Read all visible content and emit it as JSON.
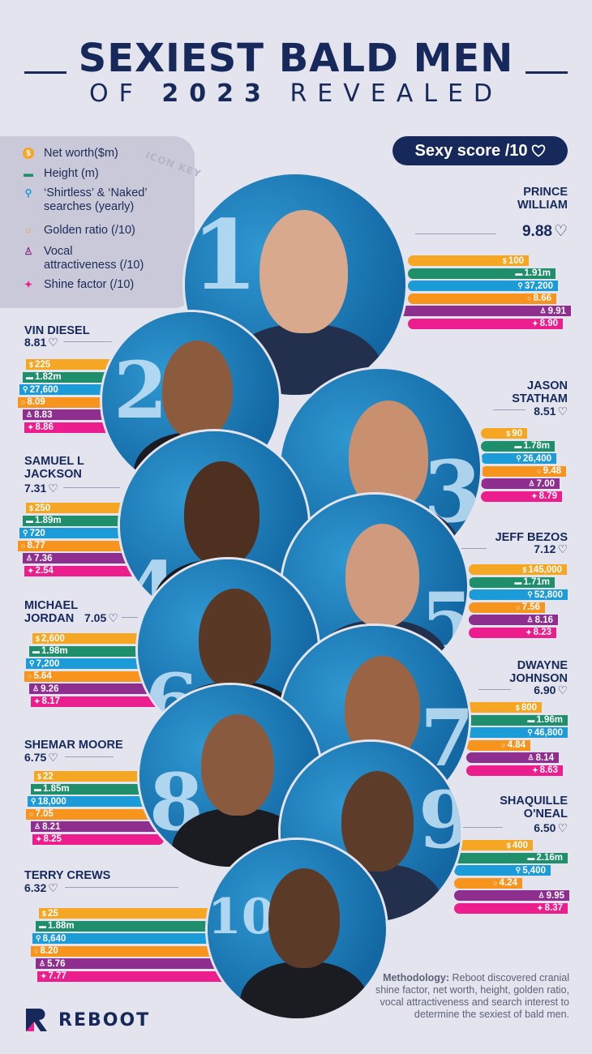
{
  "header": {
    "title_line1": "SEXIEST BALD MEN",
    "title_of": "OF",
    "title_year": "2023",
    "title_revealed": "REVEALED"
  },
  "key": {
    "label": "ICON KEY",
    "items": [
      {
        "icon": "dollar-coin-icon",
        "text": "Net worth($m)",
        "color": "#f5a623"
      },
      {
        "icon": "ruler-icon",
        "text": "Height (m)",
        "color": "#1f8f6b"
      },
      {
        "icon": "search-icon",
        "text": "‘Shirtless’ & ‘Naked’",
        "text2": "searches (yearly)",
        "color": "#1b9bd7"
      },
      {
        "icon": "circle-icon",
        "text": "Golden ratio (/10)",
        "color": "#f7941d"
      },
      {
        "icon": "microphone-icon",
        "text": "Vocal",
        "text2": "attractiveness (/10)",
        "color": "#8e2f8f"
      },
      {
        "icon": "sparkle-icon",
        "text": "Shine factor (/10)",
        "color": "#ec1d8c"
      }
    ]
  },
  "badge": {
    "label": "Sexy score /10",
    "icon": "heart-icon"
  },
  "colors": {
    "networth": "#f5a623",
    "height": "#1f8f6b",
    "searches": "#1b9bd7",
    "golden": "#f7941d",
    "vocal": "#8e2f8f",
    "shine": "#ec1d8c",
    "navy": "#16295a"
  },
  "chart_data": {
    "type": "bar",
    "title": "SEXIEST BALD MEN OF 2023 REVEALED",
    "metrics": [
      "Net worth($m)",
      "Height (m)",
      "‘Shirtless’ & ‘Naked’ searches (yearly)",
      "Golden ratio (/10)",
      "Vocal attractiveness (/10)",
      "Shine factor (/10)"
    ],
    "men": [
      {
        "rank": "1",
        "name": [
          "PRINCE",
          "WILLIAM"
        ],
        "score": "9.88",
        "side": "right",
        "values": [
          "100",
          "1.91m",
          "37,200",
          "8.66",
          "9.91",
          "8.90"
        ]
      },
      {
        "rank": "2",
        "name": [
          "VIN DIESEL"
        ],
        "score": "8.81",
        "side": "left",
        "values": [
          "225",
          "1.82m",
          "27,600",
          "8.09",
          "8.83",
          "8.86"
        ]
      },
      {
        "rank": "3",
        "name": [
          "JASON",
          "STATHAM"
        ],
        "score": "8.51",
        "side": "right",
        "values": [
          "90",
          "1.78m",
          "26,400",
          "9.48",
          "7.00",
          "8.79"
        ]
      },
      {
        "rank": "4",
        "name": [
          "SAMUEL L",
          "JACKSON"
        ],
        "score": "7.31",
        "side": "left",
        "values": [
          "250",
          "1.89m",
          "720",
          "8.77",
          "7.36",
          "2.54"
        ]
      },
      {
        "rank": "5",
        "name": [
          "JEFF BEZOS"
        ],
        "score": "7.12",
        "side": "right",
        "values": [
          "145,000",
          "1.71m",
          "52,800",
          "7.56",
          "8.16",
          "8.23"
        ]
      },
      {
        "rank": "6",
        "name": [
          "MICHAEL",
          "JORDAN"
        ],
        "score": "7.05",
        "side": "left",
        "values": [
          "2,600",
          "1.98m",
          "7,200",
          "5.64",
          "9.26",
          "8.17"
        ]
      },
      {
        "rank": "7",
        "name": [
          "DWAYNE",
          "JOHNSON"
        ],
        "score": "6.90",
        "side": "right",
        "values": [
          "800",
          "1.96m",
          "46,800",
          "4.84",
          "8.14",
          "8.63"
        ]
      },
      {
        "rank": "8",
        "name": [
          "SHEMAR MOORE"
        ],
        "score": "6.75",
        "side": "left",
        "values": [
          "22",
          "1.85m",
          "18,000",
          "7.05",
          "8.21",
          "8.25"
        ]
      },
      {
        "rank": "9",
        "name": [
          "SHAQUILLE",
          "O'NEAL"
        ],
        "score": "6.50",
        "side": "right",
        "values": [
          "400",
          "2.16m",
          "5,400",
          "4.24",
          "9.95",
          "8.37"
        ]
      },
      {
        "rank": "10",
        "name": [
          "TERRY CREWS"
        ],
        "score": "6.32",
        "side": "left",
        "values": [
          "25",
          "1.88m",
          "8,640",
          "8.20",
          "5.76",
          "7.77"
        ]
      }
    ]
  },
  "methodology": {
    "label": "Methodology:",
    "text": " Reboot discovered cranial shine factor, net worth, height, golden ratio, vocal attractiveness and search interest to determine the sexiest of bald men."
  },
  "brand": {
    "name": "REBOOT"
  }
}
